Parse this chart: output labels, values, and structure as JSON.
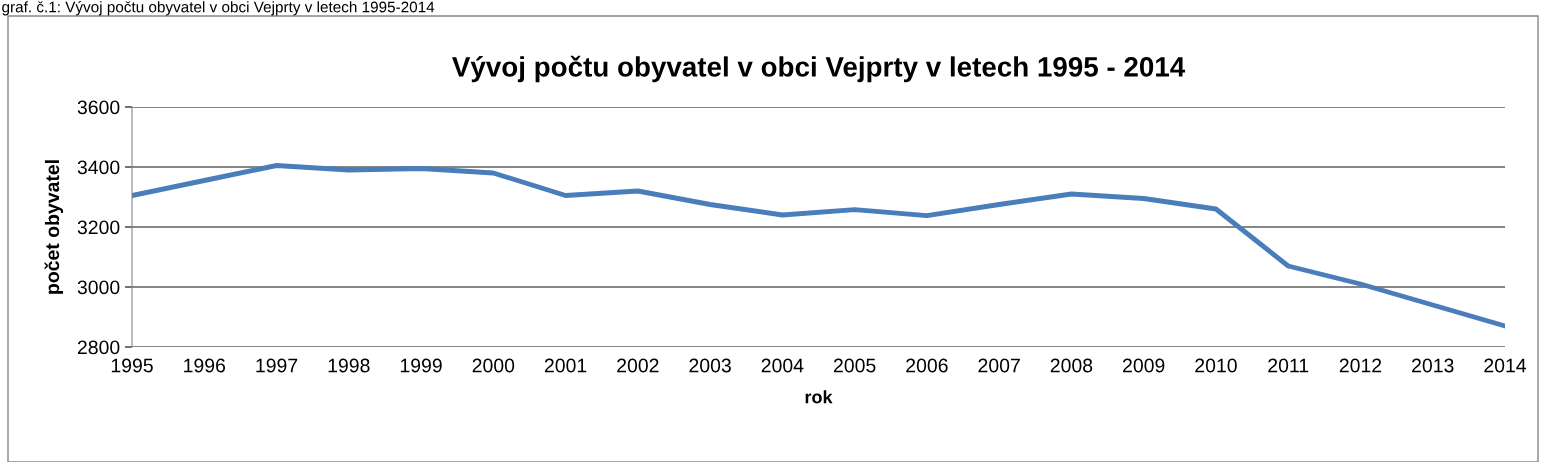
{
  "chart_data": {
    "type": "line",
    "title": "Vývoj počtu obyvatel v obci Vejprty v letech 1995 - 2014",
    "xlabel": "rok",
    "ylabel": "počet obyvatel",
    "annotations": [
      "graf. č.1: Vývoj počtu obyvatel v obci Vejprty v letech 1995-2014"
    ],
    "categories": [
      "1995",
      "1996",
      "1997",
      "1998",
      "1999",
      "2000",
      "2001",
      "2002",
      "2003",
      "2004",
      "2005",
      "2006",
      "2007",
      "2008",
      "2009",
      "2010",
      "2011",
      "2012",
      "2013",
      "2014"
    ],
    "series": [
      {
        "color": "#4a7ebb",
        "values": [
          3305,
          3355,
          3405,
          3390,
          3395,
          3380,
          3305,
          3320,
          3275,
          3240,
          3258,
          3238,
          3275,
          3310,
          3295,
          3260,
          3070,
          3010,
          2940,
          2870
        ]
      }
    ],
    "ylim": [
      2800,
      3600
    ],
    "yticks": [
      2800,
      3000,
      3200,
      3400,
      3600
    ],
    "grid": "y",
    "legend": false,
    "marker": "none",
    "line_style": "solid"
  }
}
